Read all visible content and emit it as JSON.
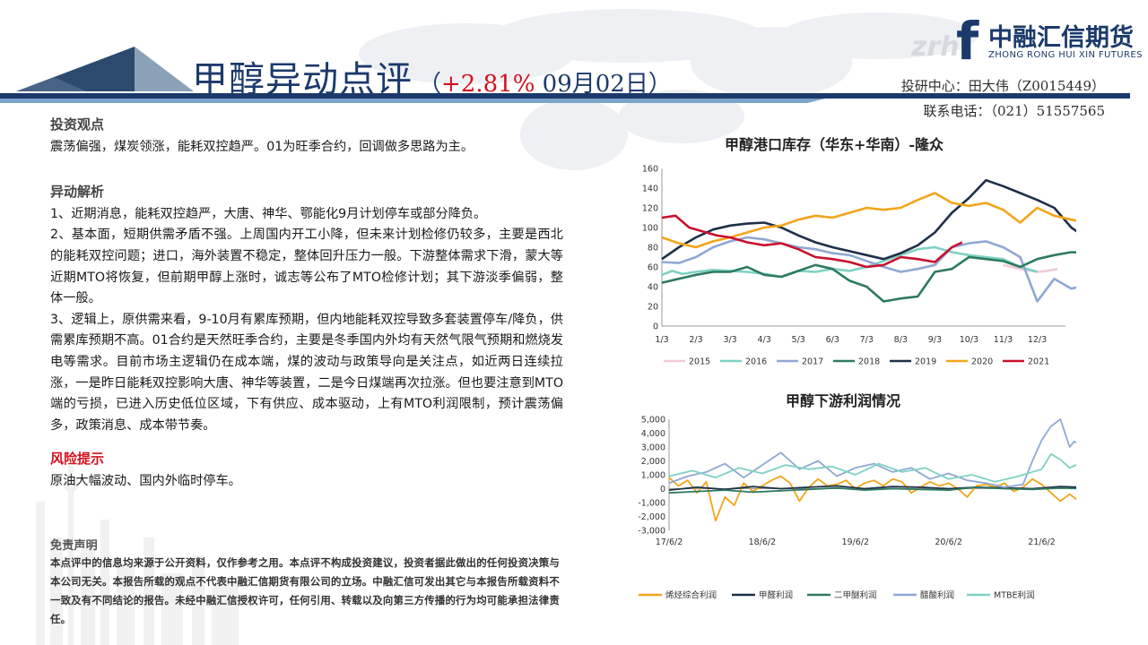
{
  "header": {
    "title": "甲醇异动点评",
    "paren_open": "（",
    "pct": "+2.81%",
    "date": "09月02日",
    "paren_close": "）"
  },
  "logo": {
    "letters": "zrh",
    "mark": "f",
    "name_cn": "中融汇信期货",
    "name_en": "ZHONG RONG HUI XIN FUTURES"
  },
  "contact": {
    "analyst": "投研中心：田大伟（Z0015449）",
    "phone": "联系电话：（021）51557565"
  },
  "sections": {
    "view_heading": "投资观点",
    "view_text": "震荡偏强，煤炭领涨，能耗双控趋严。01为旺季合约，回调做多思路为主。",
    "analysis_heading": "异动解析",
    "analysis_p1": "1、近期消息，能耗双控趋严，大唐、神华、鄂能化9月计划停车或部分降负。",
    "analysis_p2": "2、基本面，短期供需矛盾不强。上周国内开工小降，但未来计划检修仍较多，主要是西北的能耗双控问题；进口，海外装置不稳定，整体回升压力一般。下游整体需求下滑，蒙大等近期MTO将恢复，但前期甲醇上涨时，诚志等公布了MTO检修计划；其下游淡季偏弱，整体一般。",
    "analysis_p3": "3、逻辑上，原供需来看，9-10月有累库预期，但内地能耗双控导致多套装置停车/降负，供需累库预期不高。01合约是天然旺季合约，主要是冬季国内外均有天然气限气预期和燃烧发电等需求。目前市场主逻辑仍在成本端，煤的波动与政策导向是关注点，如近两日连续拉涨，一是昨日能耗双控影响大唐、神华等装置，二是今日煤端再次拉涨。但也要注意到MTO端的亏损，已进入历史低位区域，下有供应、成本驱动，上有MTO利润限制，预计震荡偏多，政策消息、成本带节奏。",
    "risk_heading": "风险提示",
    "risk_text": "原油大幅波动、国内外临时停车。"
  },
  "disclaimer": {
    "heading": "免责声明",
    "text": "本点评中的信息均来源于公开资料，仅作参考之用。本点评不构成投资建议，投资者据此做出的任何投资决策与本公司无关。本报告所载的观点不代表中融汇信期货有限公司的立场。中融汇信可发出其它与本报告所载资料不一致及有不同结论的报告。未经中融汇信授权许可，任何引用、转载以及向第三方传播的行为均可能承担法律责任。"
  },
  "chart_data": [
    {
      "type": "line",
      "title": "甲醇港口库存（华东+华南）-隆众",
      "ylim": [
        0,
        160
      ],
      "yticks": [
        "0",
        "20",
        "40",
        "60",
        "80",
        "100",
        "120",
        "140",
        "160"
      ],
      "categories": [
        "1/3",
        "2/3",
        "3/3",
        "4/3",
        "5/3",
        "6/3",
        "7/3",
        "8/3",
        "9/3",
        "10/3",
        "11/3",
        "12/3"
      ],
      "legend": "bottom",
      "grid": false,
      "series": [
        {
          "name": "2015",
          "color": "#f2c9d6",
          "x": [
            10.0,
            10.5,
            11.0,
            11.3,
            11.6
          ],
          "values": [
            62,
            58,
            55,
            56,
            58
          ]
        },
        {
          "name": "2016",
          "color": "#7fd1c4",
          "x": [
            0.0,
            0.3,
            0.6,
            1.0,
            1.5,
            2.0,
            2.5,
            3.0,
            3.5,
            4.0,
            4.5,
            5.0,
            5.5,
            6.0,
            6.5,
            7.0,
            7.5,
            8.0,
            8.5,
            9.0,
            9.5,
            10.0,
            10.5,
            11.0
          ],
          "values": [
            52,
            56,
            53,
            55,
            57,
            56,
            55,
            53,
            50,
            56,
            55,
            58,
            56,
            60,
            66,
            72,
            78,
            80,
            75,
            72,
            70,
            68,
            60,
            55
          ]
        },
        {
          "name": "2017",
          "color": "#8fa8d3",
          "x": [
            0.0,
            0.5,
            1.0,
            1.5,
            2.0,
            2.5,
            3.0,
            3.5,
            4.0,
            4.5,
            5.0,
            5.5,
            6.0,
            6.5,
            7.0,
            7.5,
            8.0,
            8.5,
            9.0,
            9.5,
            10.0,
            10.5,
            11.0,
            11.5,
            12.0,
            12.5
          ],
          "values": [
            65,
            64,
            70,
            80,
            86,
            90,
            88,
            84,
            80,
            78,
            74,
            72,
            66,
            60,
            55,
            58,
            62,
            80,
            84,
            86,
            80,
            70,
            25,
            48,
            38,
            42
          ]
        },
        {
          "name": "2018",
          "color": "#2e7a62",
          "x": [
            0.0,
            0.5,
            1.0,
            1.5,
            2.0,
            2.5,
            3.0,
            3.5,
            4.0,
            4.5,
            5.0,
            5.5,
            6.0,
            6.5,
            7.0,
            7.5,
            8.0,
            8.5,
            9.0,
            9.5,
            10.0,
            10.5,
            11.0,
            11.5,
            12.0,
            12.5
          ],
          "values": [
            44,
            48,
            52,
            55,
            55,
            60,
            52,
            50,
            56,
            62,
            58,
            46,
            40,
            25,
            28,
            30,
            55,
            58,
            70,
            68,
            66,
            60,
            68,
            72,
            75,
            74
          ]
        },
        {
          "name": "2019",
          "color": "#1e2f48",
          "x": [
            0.0,
            0.5,
            1.0,
            1.5,
            2.0,
            2.5,
            3.0,
            3.5,
            4.0,
            4.5,
            5.0,
            5.5,
            6.0,
            6.5,
            7.0,
            7.5,
            8.0,
            8.5,
            9.0,
            9.5,
            10.0,
            10.5,
            11.0,
            11.5,
            12.0,
            12.5
          ],
          "values": [
            68,
            80,
            90,
            98,
            102,
            104,
            105,
            100,
            92,
            85,
            80,
            76,
            72,
            68,
            74,
            82,
            95,
            115,
            130,
            148,
            142,
            135,
            128,
            120,
            100,
            88
          ]
        },
        {
          "name": "2020",
          "color": "#f2a51a",
          "x": [
            0.0,
            0.5,
            1.0,
            1.5,
            2.0,
            2.5,
            3.0,
            3.5,
            4.0,
            4.5,
            5.0,
            5.5,
            6.0,
            6.5,
            7.0,
            7.5,
            8.0,
            8.5,
            9.0,
            9.5,
            10.0,
            10.5,
            11.0,
            11.5,
            12.0,
            12.5
          ],
          "values": [
            90,
            84,
            80,
            86,
            90,
            95,
            100,
            102,
            108,
            112,
            110,
            115,
            120,
            118,
            120,
            128,
            135,
            125,
            122,
            125,
            118,
            105,
            120,
            112,
            108,
            105
          ]
        },
        {
          "name": "2021",
          "color": "#c8102e",
          "x": [
            0.0,
            0.4,
            0.8,
            1.2,
            1.6,
            2.0,
            2.5,
            3.0,
            3.5,
            4.0,
            4.5,
            5.0,
            5.5,
            6.0,
            6.5,
            7.0,
            7.5,
            8.0,
            8.5,
            8.8
          ],
          "values": [
            110,
            112,
            100,
            96,
            92,
            90,
            85,
            82,
            84,
            78,
            70,
            68,
            65,
            60,
            62,
            70,
            68,
            65,
            80,
            85
          ]
        }
      ]
    },
    {
      "type": "line",
      "title": "甲醇下游利润情况",
      "ylim": [
        -3000,
        5000
      ],
      "yticks": [
        "-3,000",
        "-2,000",
        "-1,000",
        "0",
        "1,000",
        "2,000",
        "3,000",
        "4,000",
        "5,000"
      ],
      "categories": [
        "17/6/2",
        "18/6/2",
        "19/6/2",
        "20/6/2",
        "21/6/2"
      ],
      "legend": "bottom",
      "grid": false,
      "series": [
        {
          "name": "烯烃综合利润",
          "color": "#f2a51a",
          "x": [
            0.0,
            0.1,
            0.2,
            0.3,
            0.4,
            0.5,
            0.6,
            0.7,
            0.8,
            0.9,
            1.0,
            1.1,
            1.2,
            1.3,
            1.4,
            1.5,
            1.6,
            1.7,
            1.8,
            1.9,
            2.0,
            2.1,
            2.2,
            2.3,
            2.4,
            2.5,
            2.6,
            2.7,
            2.8,
            2.9,
            3.0,
            3.1,
            3.2,
            3.3,
            3.4,
            3.5,
            3.6,
            3.7,
            3.8,
            3.9,
            4.0,
            4.1,
            4.2,
            4.3,
            4.4
          ],
          "values": [
            800,
            200,
            600,
            -300,
            500,
            -2300,
            -600,
            -1200,
            400,
            -200,
            200,
            600,
            900,
            400,
            -900,
            100,
            700,
            200,
            300,
            600,
            0,
            400,
            600,
            200,
            700,
            500,
            -300,
            100,
            500,
            200,
            400,
            0,
            -600,
            200,
            300,
            100,
            400,
            -200,
            100,
            700,
            300,
            -300,
            -900,
            -400,
            -900
          ]
        },
        {
          "name": "甲醛利润",
          "color": "#1e2f48",
          "x": [
            0.0,
            0.3,
            0.6,
            0.9,
            1.2,
            1.5,
            1.8,
            2.1,
            2.4,
            2.7,
            3.0,
            3.3,
            3.6,
            3.9,
            4.2,
            4.4
          ],
          "values": [
            -100,
            100,
            -50,
            150,
            0,
            100,
            200,
            0,
            150,
            100,
            0,
            100,
            50,
            0,
            150,
            100
          ]
        },
        {
          "name": "二甲醚利润",
          "color": "#2e7a62",
          "x": [
            0.0,
            0.3,
            0.6,
            0.9,
            1.2,
            1.5,
            1.8,
            2.1,
            2.4,
            2.7,
            3.0,
            3.3,
            3.6,
            3.9,
            4.2,
            4.4
          ],
          "values": [
            -300,
            -200,
            -100,
            -250,
            -150,
            -50,
            50,
            -100,
            0,
            -50,
            -100,
            100,
            0,
            -50,
            50,
            0
          ]
        },
        {
          "name": "醋酸利润",
          "color": "#8fa8d3",
          "x": [
            0.0,
            0.2,
            0.4,
            0.6,
            0.8,
            1.0,
            1.2,
            1.4,
            1.6,
            1.8,
            2.0,
            2.2,
            2.4,
            2.6,
            2.8,
            3.0,
            3.2,
            3.4,
            3.6,
            3.8,
            3.9,
            4.0,
            4.1,
            4.2,
            4.3,
            4.35,
            4.4
          ],
          "values": [
            400,
            900,
            1200,
            1800,
            800,
            1700,
            2600,
            1400,
            2000,
            900,
            1500,
            1800,
            1200,
            1500,
            700,
            1100,
            600,
            400,
            100,
            300,
            2000,
            3500,
            4500,
            5000,
            3000,
            3400,
            3200
          ]
        },
        {
          "name": "MTBE利润",
          "color": "#7fd1c4",
          "x": [
            0.0,
            0.25,
            0.5,
            0.75,
            1.0,
            1.25,
            1.5,
            1.75,
            2.0,
            2.25,
            2.5,
            2.75,
            3.0,
            3.25,
            3.5,
            3.75,
            4.0,
            4.1,
            4.2,
            4.3,
            4.4
          ],
          "values": [
            900,
            1300,
            800,
            1500,
            1100,
            1700,
            1400,
            1600,
            1000,
            1800,
            1200,
            1500,
            700,
            1000,
            500,
            900,
            1400,
            2500,
            2100,
            1500,
            1800
          ]
        }
      ]
    }
  ]
}
